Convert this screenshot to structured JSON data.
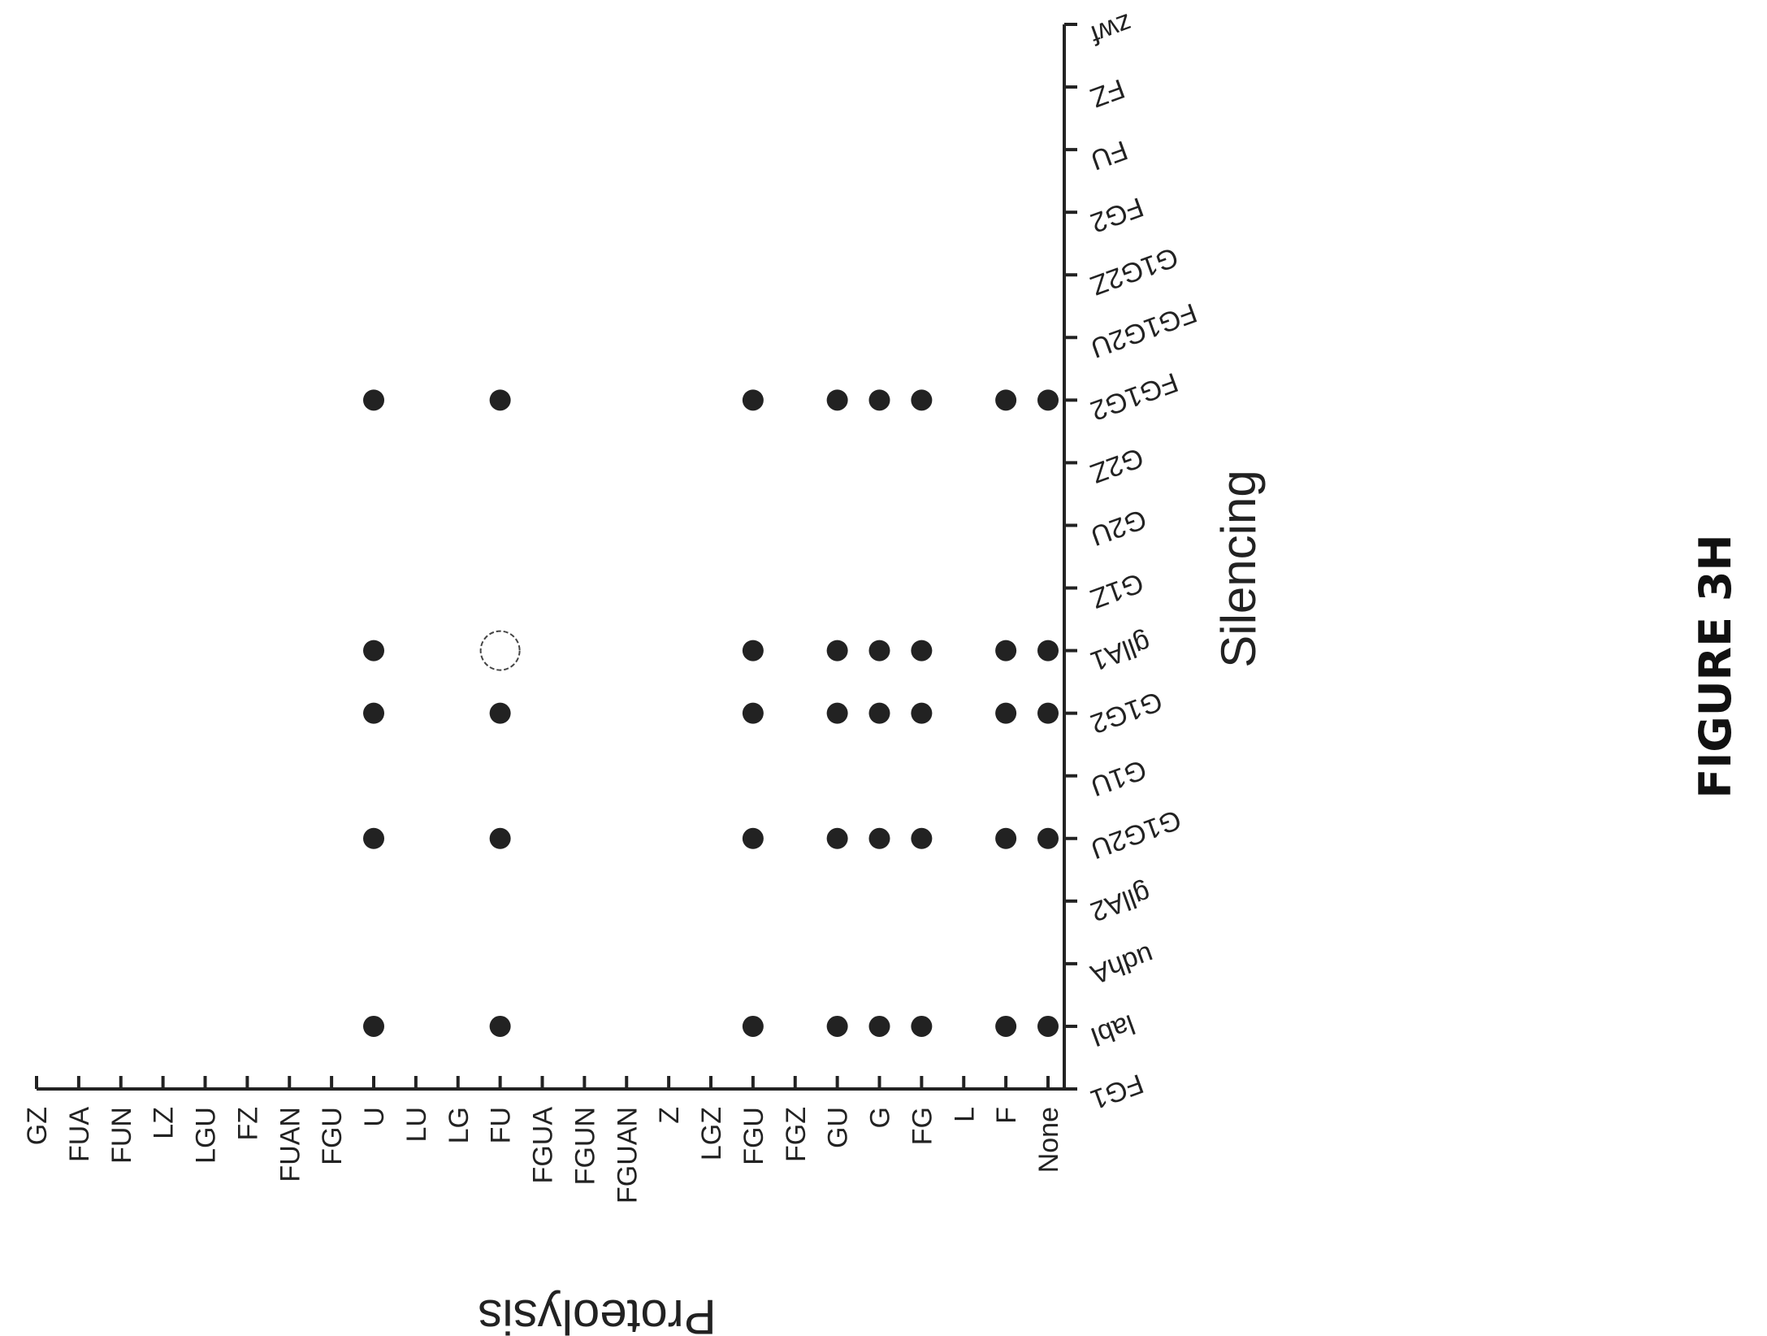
{
  "figure_label": "FIGURE 3H",
  "chart_data": {
    "type": "scatter",
    "title": "",
    "xlabel": "Proteolysis",
    "ylabel": "Silencing",
    "grid": false,
    "legend": "none",
    "x_categories": [
      "GZ",
      "FUA",
      "FUN",
      "LZ",
      "LGU",
      "FZ",
      "FUAN",
      "FGU",
      "U",
      "LU",
      "LG",
      "FU",
      "FGUA",
      "FGUN",
      "FGUAN",
      "Z",
      "LGZ",
      "FGU",
      "FGZ",
      "GU",
      "G",
      "FG",
      "L",
      "F",
      "None"
    ],
    "y_categories": [
      "FG1",
      "labI",
      "udhA",
      "gllA2",
      "G1G2U",
      "G1U",
      "G1G2",
      "gllA1",
      "G1Z",
      "G2U",
      "G2Z",
      "FG1G2",
      "FG1G2U",
      "G1G2Z",
      "FG2",
      "FU",
      "FZ",
      "zwf"
    ],
    "points": [
      {
        "x": "U",
        "y": "labI",
        "filled": true
      },
      {
        "x": "FU",
        "y": "labI",
        "filled": true
      },
      {
        "x": "FGU",
        "y": "labI",
        "filled": true
      },
      {
        "x": "GU",
        "y": "labI",
        "filled": true
      },
      {
        "x": "G",
        "y": "labI",
        "filled": true
      },
      {
        "x": "FG",
        "y": "labI",
        "filled": true
      },
      {
        "x": "F",
        "y": "labI",
        "filled": true
      },
      {
        "x": "None",
        "y": "labI",
        "filled": true
      },
      {
        "x": "U",
        "y": "G1G2U",
        "filled": true
      },
      {
        "x": "FU",
        "y": "G1G2U",
        "filled": true
      },
      {
        "x": "FGU",
        "y": "G1G2U",
        "filled": true
      },
      {
        "x": "GU",
        "y": "G1G2U",
        "filled": true
      },
      {
        "x": "G",
        "y": "G1G2U",
        "filled": true
      },
      {
        "x": "FG",
        "y": "G1G2U",
        "filled": true
      },
      {
        "x": "F",
        "y": "G1G2U",
        "filled": true
      },
      {
        "x": "None",
        "y": "G1G2U",
        "filled": true
      },
      {
        "x": "U",
        "y": "G1G2",
        "filled": true
      },
      {
        "x": "FU",
        "y": "G1G2",
        "filled": true
      },
      {
        "x": "FGU",
        "y": "G1G2",
        "filled": true
      },
      {
        "x": "GU",
        "y": "G1G2",
        "filled": true
      },
      {
        "x": "G",
        "y": "G1G2",
        "filled": true
      },
      {
        "x": "FG",
        "y": "G1G2",
        "filled": true
      },
      {
        "x": "F",
        "y": "G1G2",
        "filled": true
      },
      {
        "x": "None",
        "y": "G1G2",
        "filled": true
      },
      {
        "x": "U",
        "y": "gllA1",
        "filled": true
      },
      {
        "x": "FU",
        "y": "gllA1",
        "filled": false
      },
      {
        "x": "FGU",
        "y": "gllA1",
        "filled": true
      },
      {
        "x": "GU",
        "y": "gllA1",
        "filled": true
      },
      {
        "x": "G",
        "y": "gllA1",
        "filled": true
      },
      {
        "x": "FG",
        "y": "gllA1",
        "filled": true
      },
      {
        "x": "F",
        "y": "gllA1",
        "filled": true
      },
      {
        "x": "None",
        "y": "gllA1",
        "filled": true
      },
      {
        "x": "U",
        "y": "FG1G2",
        "filled": true
      },
      {
        "x": "FU",
        "y": "FG1G2",
        "filled": true
      },
      {
        "x": "FGU",
        "y": "FG1G2",
        "filled": true
      },
      {
        "x": "GU",
        "y": "FG1G2",
        "filled": true
      },
      {
        "x": "G",
        "y": "FG1G2",
        "filled": true
      },
      {
        "x": "FG",
        "y": "FG1G2",
        "filled": true
      },
      {
        "x": "F",
        "y": "FG1G2",
        "filled": true
      },
      {
        "x": "None",
        "y": "FG1G2",
        "filled": true
      }
    ],
    "colors": {
      "filled": "#222222",
      "hollow_stroke": "#444444",
      "axis": "#222222"
    }
  }
}
